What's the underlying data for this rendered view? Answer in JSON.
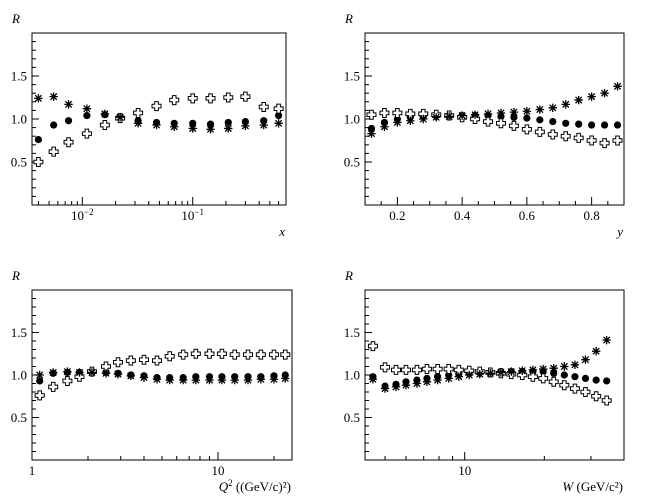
{
  "chart_data": [
    {
      "type": "scatter",
      "panel": "top-left",
      "xscale": "log",
      "xlim": [
        0.0035,
        0.7
      ],
      "ylim": [
        0.0,
        2.0
      ],
      "ylabel": "R",
      "xlabel": "x",
      "xlabel_unit": "",
      "xticks": [
        {
          "v": 0.01,
          "label": "10",
          "sup": "−2"
        },
        {
          "v": 0.1,
          "label": "10",
          "sup": "−1"
        }
      ],
      "yticks": [
        {
          "v": 0.5,
          "label": "0.5"
        },
        {
          "v": 1.0,
          "label": "1.0"
        },
        {
          "v": 1.5,
          "label": "1.5"
        }
      ],
      "x": [
        0.004,
        0.0055,
        0.0075,
        0.011,
        0.016,
        0.022,
        0.032,
        0.047,
        0.068,
        0.1,
        0.145,
        0.21,
        0.3,
        0.44,
        0.6
      ],
      "series": [
        {
          "name": "filled circle",
          "marker": "circle",
          "values": [
            0.76,
            0.93,
            0.98,
            1.04,
            1.05,
            1.03,
            0.98,
            0.96,
            0.95,
            0.95,
            0.94,
            0.96,
            0.97,
            0.98,
            1.04
          ]
        },
        {
          "name": "open cross",
          "marker": "plus",
          "values": [
            0.5,
            0.62,
            0.73,
            0.83,
            0.93,
            1.01,
            1.07,
            1.15,
            1.22,
            1.24,
            1.24,
            1.25,
            1.26,
            1.14,
            1.12
          ]
        },
        {
          "name": "asterisk",
          "marker": "star",
          "values": [
            1.24,
            1.26,
            1.17,
            1.12,
            1.06,
            1.02,
            0.95,
            0.93,
            0.91,
            0.89,
            0.88,
            0.89,
            0.92,
            0.93,
            0.95
          ]
        }
      ]
    },
    {
      "type": "scatter",
      "panel": "top-right",
      "xscale": "linear",
      "xlim": [
        0.1,
        0.9
      ],
      "ylim": [
        0.0,
        2.0
      ],
      "ylabel": "R",
      "xlabel": "y",
      "xlabel_unit": "",
      "xticks": [
        {
          "v": 0.2,
          "label": "0.2"
        },
        {
          "v": 0.4,
          "label": "0.4"
        },
        {
          "v": 0.6,
          "label": "0.6"
        },
        {
          "v": 0.8,
          "label": "0.8"
        }
      ],
      "yticks": [
        {
          "v": 0.5,
          "label": "0.5"
        },
        {
          "v": 1.0,
          "label": "1.0"
        },
        {
          "v": 1.5,
          "label": "1.5"
        }
      ],
      "x": [
        0.12,
        0.16,
        0.2,
        0.24,
        0.28,
        0.32,
        0.36,
        0.4,
        0.44,
        0.48,
        0.52,
        0.56,
        0.6,
        0.64,
        0.68,
        0.72,
        0.76,
        0.8,
        0.84,
        0.88
      ],
      "series": [
        {
          "name": "filled circle",
          "marker": "circle",
          "values": [
            0.89,
            0.96,
            1.0,
            1.02,
            1.03,
            1.04,
            1.04,
            1.04,
            1.04,
            1.04,
            1.03,
            1.02,
            1.01,
            0.99,
            0.97,
            0.95,
            0.94,
            0.93,
            0.93,
            0.93
          ]
        },
        {
          "name": "open cross",
          "marker": "plus",
          "values": [
            1.05,
            1.07,
            1.07,
            1.06,
            1.06,
            1.05,
            1.04,
            1.02,
            1.0,
            0.97,
            0.95,
            0.92,
            0.88,
            0.85,
            0.82,
            0.8,
            0.78,
            0.75,
            0.72,
            0.75
          ]
        },
        {
          "name": "asterisk",
          "marker": "star",
          "values": [
            0.83,
            0.91,
            0.96,
            0.98,
            1.0,
            1.02,
            1.03,
            1.04,
            1.05,
            1.06,
            1.07,
            1.08,
            1.09,
            1.11,
            1.13,
            1.17,
            1.22,
            1.26,
            1.3,
            1.38
          ]
        }
      ]
    },
    {
      "type": "scatter",
      "panel": "bottom-left",
      "xscale": "log",
      "xlim": [
        1.0,
        25.0
      ],
      "ylim": [
        0.0,
        2.0
      ],
      "ylabel": "R",
      "xlabel": "Q",
      "xlabel_sup": "2",
      "xlabel_unit": "((GeV/c)²)",
      "xticks": [
        {
          "v": 1,
          "label": "1"
        },
        {
          "v": 10,
          "label": "10"
        }
      ],
      "yticks": [
        {
          "v": 0.5,
          "label": "0.5"
        },
        {
          "v": 1.0,
          "label": "1.0"
        },
        {
          "v": 1.5,
          "label": "1.5"
        }
      ],
      "x": [
        1.1,
        1.3,
        1.55,
        1.8,
        2.1,
        2.5,
        2.9,
        3.4,
        4.0,
        4.7,
        5.5,
        6.5,
        7.6,
        9.0,
        10.5,
        12.3,
        14.5,
        17.0,
        20.0,
        23.0
      ],
      "series": [
        {
          "name": "filled circle",
          "marker": "circle",
          "values": [
            0.93,
            1.02,
            1.03,
            1.03,
            1.04,
            1.03,
            1.02,
            1.0,
            0.99,
            0.97,
            0.97,
            0.97,
            0.98,
            0.98,
            0.98,
            0.98,
            0.98,
            0.98,
            0.99,
            1.0
          ]
        },
        {
          "name": "open cross",
          "marker": "plus",
          "values": [
            0.76,
            0.86,
            0.93,
            0.98,
            1.04,
            1.1,
            1.15,
            1.17,
            1.18,
            1.17,
            1.22,
            1.24,
            1.25,
            1.25,
            1.25,
            1.24,
            1.24,
            1.24,
            1.24,
            1.24
          ]
        },
        {
          "name": "asterisk",
          "marker": "star",
          "values": [
            1.0,
            1.03,
            1.04,
            1.03,
            1.03,
            1.02,
            1.01,
            0.99,
            0.97,
            0.95,
            0.94,
            0.94,
            0.94,
            0.94,
            0.94,
            0.94,
            0.94,
            0.95,
            0.95,
            0.96
          ]
        }
      ]
    },
    {
      "type": "scatter",
      "panel": "bottom-right",
      "xscale": "log",
      "xlim": [
        4.2,
        40.0
      ],
      "ylim": [
        0.0,
        2.0
      ],
      "ylabel": "R",
      "xlabel": "W",
      "xlabel_unit": "(GeV/c²)",
      "xticks": [
        {
          "v": 10,
          "label": "10"
        }
      ],
      "yticks": [
        {
          "v": 0.5,
          "label": "0.5"
        },
        {
          "v": 1.0,
          "label": "1.0"
        },
        {
          "v": 1.5,
          "label": "1.5"
        }
      ],
      "x": [
        4.5,
        5.0,
        5.5,
        6.0,
        6.6,
        7.2,
        7.9,
        8.7,
        9.5,
        10.4,
        11.4,
        12.5,
        13.7,
        15.0,
        16.5,
        18.1,
        19.8,
        21.7,
        23.8,
        26.1,
        28.6,
        31.4,
        34.4
      ],
      "series": [
        {
          "name": "filled circle",
          "marker": "circle",
          "values": [
            0.98,
            0.87,
            0.89,
            0.92,
            0.94,
            0.96,
            0.98,
            1.0,
            1.01,
            1.02,
            1.03,
            1.03,
            1.04,
            1.04,
            1.04,
            1.04,
            1.04,
            1.02,
            1.0,
            0.98,
            0.96,
            0.94,
            0.93
          ]
        },
        {
          "name": "open cross",
          "marker": "plus",
          "values": [
            1.34,
            1.09,
            1.06,
            1.06,
            1.06,
            1.07,
            1.07,
            1.07,
            1.06,
            1.05,
            1.04,
            1.03,
            1.02,
            1.01,
            1.0,
            0.98,
            0.96,
            0.92,
            0.88,
            0.84,
            0.8,
            0.75,
            0.7
          ]
        },
        {
          "name": "asterisk",
          "marker": "star",
          "values": [
            0.95,
            0.84,
            0.86,
            0.88,
            0.9,
            0.92,
            0.94,
            0.96,
            0.98,
            1.0,
            1.01,
            1.02,
            1.03,
            1.04,
            1.05,
            1.06,
            1.07,
            1.08,
            1.1,
            1.12,
            1.18,
            1.28,
            1.41
          ]
        }
      ]
    }
  ]
}
